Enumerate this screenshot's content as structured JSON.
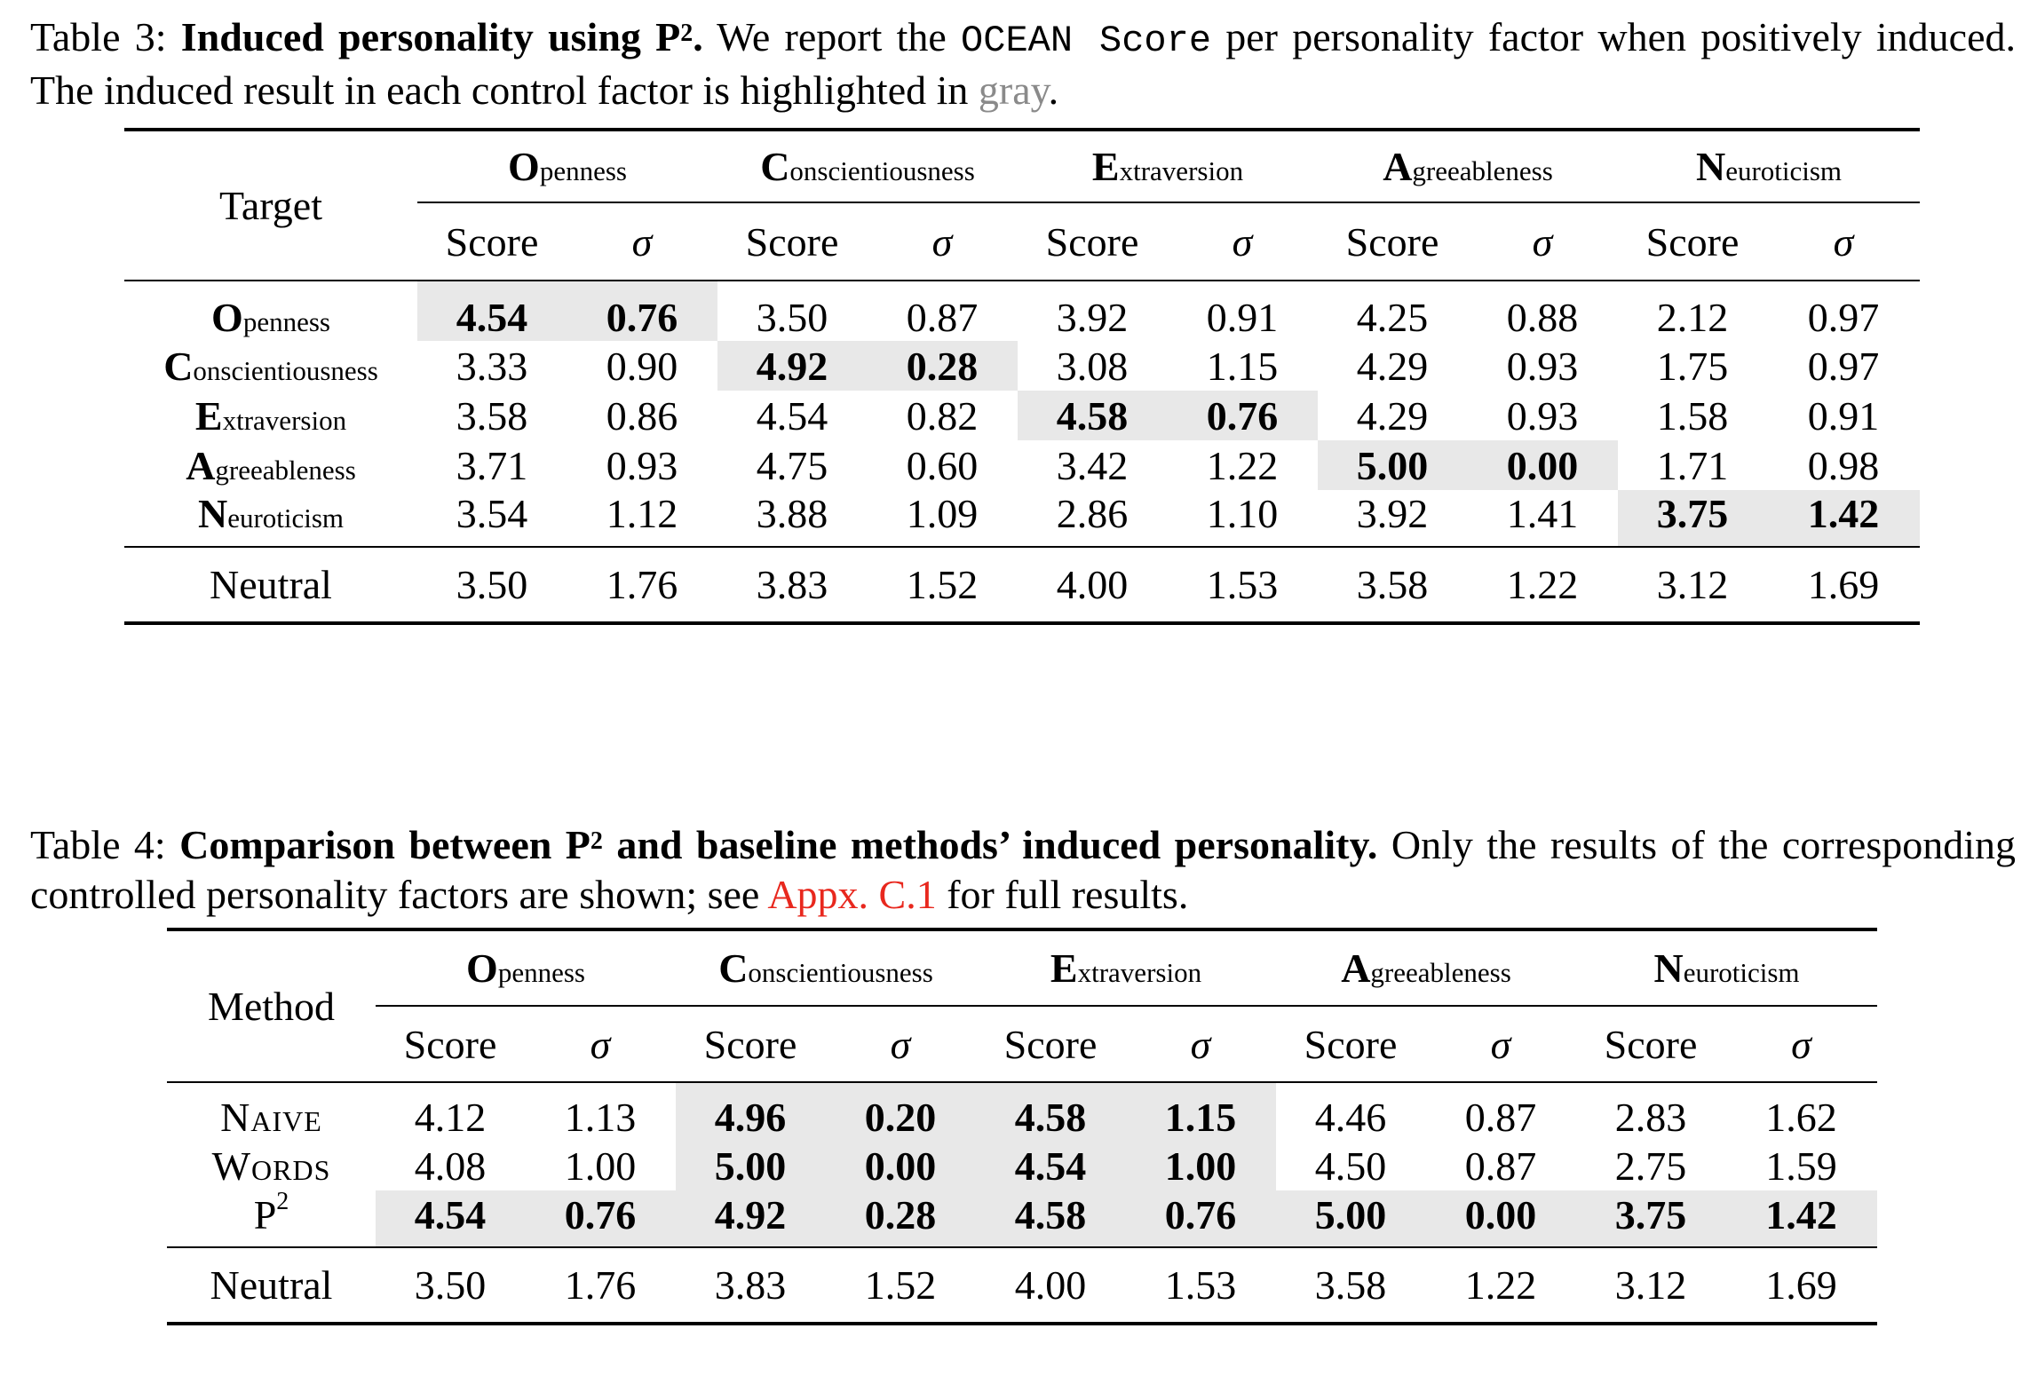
{
  "table3": {
    "caption_label": "Table 3:",
    "caption_bold": "Induced personality using P",
    "caption_bold_sup": "2",
    "caption_bold_end": ".",
    "caption_text1": "We report the",
    "caption_code": "OCEAN Score",
    "caption_text2": "per personality factor when positively induced. The induced result in each control factor is highlighted in",
    "caption_gray_word": "gray",
    "caption_end": ".",
    "corner_label": "Target",
    "factors": [
      {
        "cap": "O",
        "rest": "penness"
      },
      {
        "cap": "C",
        "rest": "onscientiousness"
      },
      {
        "cap": "E",
        "rest": "xtraversion"
      },
      {
        "cap": "A",
        "rest": "greeableness"
      },
      {
        "cap": "N",
        "rest": "euroticism"
      }
    ],
    "score_label": "Score",
    "sigma_label": "σ",
    "rows": [
      {
        "cap": "O",
        "rest": "penness",
        "cells": [
          "4.54",
          "0.76",
          "3.50",
          "0.87",
          "3.92",
          "0.91",
          "4.25",
          "0.88",
          "2.12",
          "0.97"
        ]
      },
      {
        "cap": "C",
        "rest": "onscientiousness",
        "cells": [
          "3.33",
          "0.90",
          "4.92",
          "0.28",
          "3.08",
          "1.15",
          "4.29",
          "0.93",
          "1.75",
          "0.97"
        ]
      },
      {
        "cap": "E",
        "rest": "xtraversion",
        "cells": [
          "3.58",
          "0.86",
          "4.54",
          "0.82",
          "4.58",
          "0.76",
          "4.29",
          "0.93",
          "1.58",
          "0.91"
        ]
      },
      {
        "cap": "A",
        "rest": "greeableness",
        "cells": [
          "3.71",
          "0.93",
          "4.75",
          "0.60",
          "3.42",
          "1.22",
          "5.00",
          "0.00",
          "1.71",
          "0.98"
        ]
      },
      {
        "cap": "N",
        "rest": "euroticism",
        "cells": [
          "3.54",
          "1.12",
          "3.88",
          "1.09",
          "2.86",
          "1.10",
          "3.92",
          "1.41",
          "3.75",
          "1.42"
        ]
      }
    ],
    "neutral": {
      "label": "Neutral",
      "cells": [
        "3.50",
        "1.76",
        "3.83",
        "1.52",
        "4.00",
        "1.53",
        "3.58",
        "1.22",
        "3.12",
        "1.69"
      ]
    }
  },
  "table4": {
    "caption_label": "Table 4:",
    "caption_bold": "Comparison between P",
    "caption_bold_sup": "2",
    "caption_bold_end": "and baseline methods’ induced personality.",
    "caption_text1": "Only the results of the corresponding controlled personality factors are shown; see",
    "caption_link": "Appx. C.1",
    "caption_text2": "for full results.",
    "corner_label": "Method",
    "score_label": "Score",
    "sigma_label": "σ",
    "rows": [
      {
        "label": "Naive",
        "cells": [
          "4.12",
          "1.13",
          "4.96",
          "0.20",
          "4.58",
          "1.15",
          "4.46",
          "0.87",
          "2.83",
          "1.62"
        ]
      },
      {
        "label": "Words",
        "cells": [
          "4.08",
          "1.00",
          "5.00",
          "0.00",
          "4.54",
          "1.00",
          "4.50",
          "0.87",
          "2.75",
          "1.59"
        ]
      },
      {
        "label": "P",
        "label_sup": "2",
        "cells": [
          "4.54",
          "0.76",
          "4.92",
          "0.28",
          "4.58",
          "0.76",
          "5.00",
          "0.00",
          "3.75",
          "1.42"
        ]
      }
    ],
    "neutral": {
      "label": "Neutral",
      "cells": [
        "3.50",
        "1.76",
        "3.83",
        "1.52",
        "4.00",
        "1.53",
        "3.58",
        "1.22",
        "3.12",
        "1.69"
      ]
    }
  }
}
